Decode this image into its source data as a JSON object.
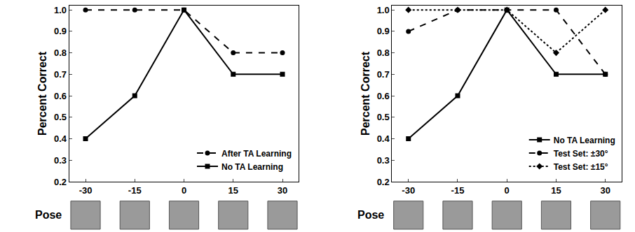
{
  "chart_data": [
    {
      "type": "line",
      "x": [
        -30,
        -15,
        0,
        15,
        30
      ],
      "xlim": [
        -35,
        35
      ],
      "xticks": [
        -30,
        -15,
        0,
        15,
        30
      ],
      "xlabel": "Pose",
      "ylabel": "Percent Correct",
      "ylim": [
        0.2,
        1.02
      ],
      "yticks": [
        0.2,
        0.3,
        0.4,
        0.5,
        0.6,
        0.7,
        0.8,
        0.9,
        {
          "value": 1,
          "label": "1.0"
        }
      ],
      "legend": "lower right",
      "series": [
        {
          "name": "After TA Learning",
          "color": "#000000",
          "marker": "circle",
          "line_style": "dash",
          "values": [
            1,
            1,
            1,
            0.8,
            0.8
          ]
        },
        {
          "name": "No TA Learning",
          "color": "#000000",
          "marker": "square",
          "line_style": "solid",
          "values": [
            0.4,
            0.6,
            1,
            0.7,
            0.7
          ]
        }
      ]
    },
    {
      "type": "line",
      "x": [
        -30,
        -15,
        0,
        15,
        30
      ],
      "xlim": [
        -35,
        35
      ],
      "xticks": [
        -30,
        -15,
        0,
        15,
        30
      ],
      "xlabel": "Pose",
      "ylabel": "Percent Correct",
      "ylim": [
        0.2,
        1.02
      ],
      "yticks": [
        0.2,
        0.3,
        0.4,
        0.5,
        0.6,
        0.7,
        0.8,
        0.9,
        {
          "value": 1,
          "label": "1.0"
        }
      ],
      "legend": "lower right",
      "series": [
        {
          "name": "No TA Learning",
          "color": "#000000",
          "marker": "square",
          "line_style": "solid",
          "values": [
            0.4,
            0.6,
            1,
            0.7,
            0.7
          ]
        },
        {
          "name": "Test Set: ±30°",
          "color": "#000000",
          "marker": "circle",
          "line_style": "dash",
          "values": [
            0.9,
            1,
            1,
            1,
            0.7
          ]
        },
        {
          "name": "Test Set: ±15°",
          "color": "#000000",
          "marker": "diamond",
          "line_style": "dot",
          "values": [
            1,
            1,
            1,
            0.8,
            1
          ]
        }
      ]
    }
  ]
}
